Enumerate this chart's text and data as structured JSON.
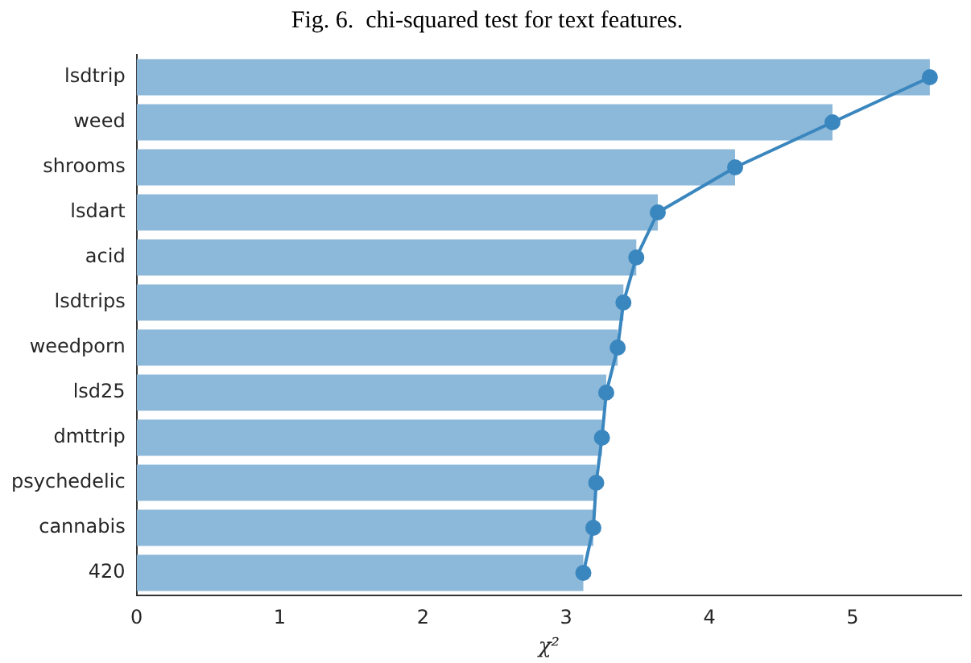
{
  "chart_data": {
    "type": "bar",
    "orientation": "horizontal",
    "title": "Fig. 6.  chi-squared test for text features.",
    "xlabel": "χ²",
    "categories": [
      "lsdtrip",
      "weed",
      "shrooms",
      "lsdart",
      "acid",
      "lsdtrips",
      "weedporn",
      "lsd25",
      "dmttrip",
      "psychedelic",
      "cannabis",
      "420"
    ],
    "series": [
      {
        "color": "#8cb8d9",
        "values": [
          5.54,
          4.86,
          4.18,
          3.64,
          3.49,
          3.4,
          3.36,
          3.28,
          3.25,
          3.21,
          3.19,
          3.12
        ]
      },
      {
        "type": "line",
        "color": "#3a86be",
        "marker": "circle",
        "values": [
          5.54,
          4.86,
          4.18,
          3.64,
          3.49,
          3.4,
          3.36,
          3.28,
          3.25,
          3.21,
          3.19,
          3.12
        ]
      }
    ],
    "xlim": [
      0,
      5.76
    ],
    "xticks": [
      0,
      1,
      2,
      3,
      4,
      5
    ],
    "grid": false,
    "legend": false
  }
}
